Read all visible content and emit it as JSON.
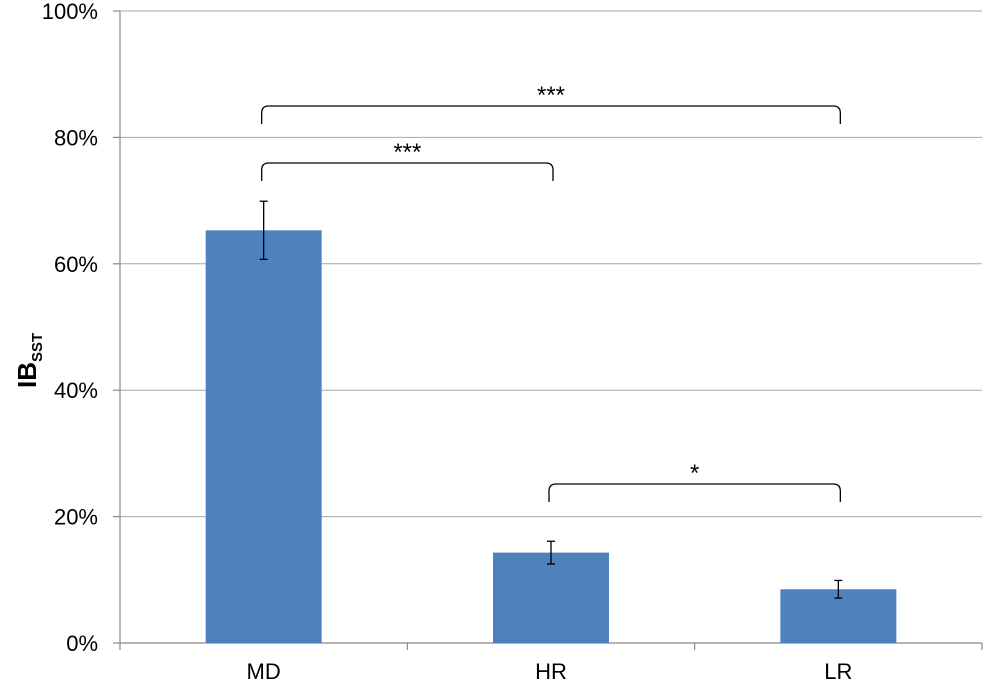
{
  "chart_data": {
    "type": "bar",
    "categories": [
      "MD",
      "HR",
      "LR"
    ],
    "values": [
      65.3,
      14.3,
      8.5
    ],
    "errors": [
      4.6,
      1.8,
      1.4
    ],
    "ylim": [
      0,
      100
    ],
    "yticks": [
      "0%",
      "20%",
      "40%",
      "60%",
      "80%",
      "100%"
    ],
    "ytick_values": [
      0,
      20,
      40,
      60,
      80,
      100
    ],
    "ylabel": "IB",
    "ylabel_sub": "SST",
    "xlabel": "",
    "grid": true,
    "bar_color": "#4f81bd",
    "significance": [
      {
        "from": 0,
        "to": 2,
        "level": 1,
        "label": "***"
      },
      {
        "from": 0,
        "to": 1,
        "level": 0,
        "label": "***"
      },
      {
        "from": 1,
        "to": 2,
        "level": -1,
        "label": "*"
      }
    ]
  }
}
